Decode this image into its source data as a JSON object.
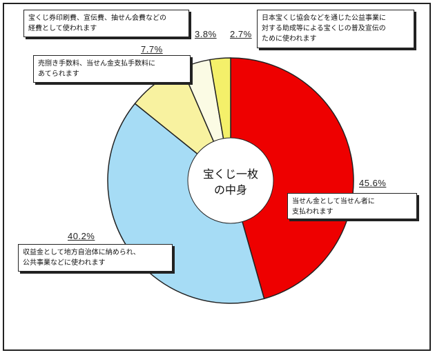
{
  "chart_data": {
    "type": "pie",
    "title": "",
    "center_label": [
      "宝くじ一枚",
      "の中身"
    ],
    "slices": [
      {
        "value": 45.6,
        "label": "45.6%",
        "color": "#ee0000",
        "description": [
          "当せん金として当せん者に",
          "支払われます"
        ]
      },
      {
        "value": 40.2,
        "label": "40.2%",
        "color": "#a6dcf5",
        "description": [
          "収益金として地方自治体に納められ、",
          "公共事業などに使われます"
        ]
      },
      {
        "value": 7.7,
        "label": "7.7%",
        "color": "#f8f2a0",
        "description": [
          "売捌き手数料、当せん金支払手数料に",
          "あてられます"
        ]
      },
      {
        "value": 3.8,
        "label": "3.8%",
        "color": "#fbfbe4",
        "description": [
          "宝くじ券印刷費、宣伝費、抽せん会費などの",
          "経費として使われます"
        ]
      },
      {
        "value": 2.7,
        "label": "2.7%",
        "color": "#f4f06a",
        "description": [
          "日本宝くじ協会などを通じた公益事業に",
          "対する助成等による宝くじの普及宣伝の",
          "ために使われます"
        ]
      }
    ]
  }
}
